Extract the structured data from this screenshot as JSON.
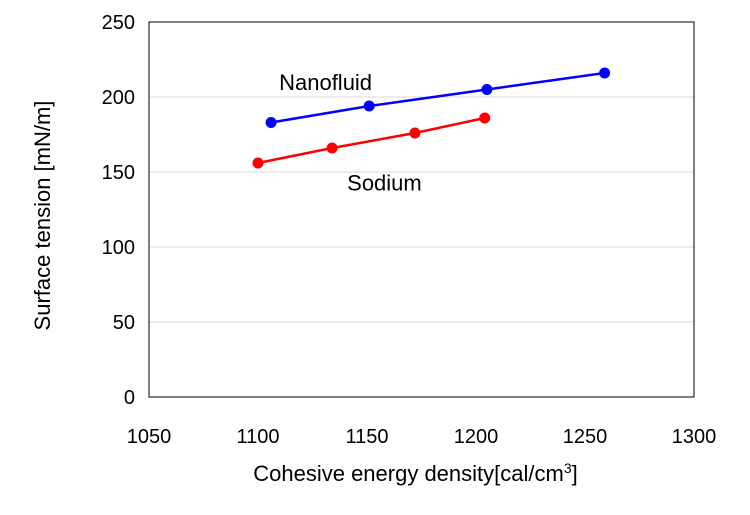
{
  "chart_data": {
    "type": "line",
    "xlabel": "Cohesive energy density[cal/cm",
    "xlabel_sup": "3",
    "xlabel_end": "]",
    "ylabel": "Surface tension [mN/m]",
    "xlim": [
      1050,
      1300
    ],
    "ylim": [
      0,
      250
    ],
    "xticks": [
      "1050",
      "1100",
      "1150",
      "1200",
      "1250",
      "1300"
    ],
    "yticks": [
      "0",
      "50",
      "100",
      "150",
      "200",
      "250"
    ],
    "grid": "horizontal",
    "series": [
      {
        "name": "Nanofluid",
        "color": "#0000ff",
        "x": [
          1106,
          1151,
          1205,
          1259
        ],
        "y": [
          183,
          194,
          205,
          216
        ]
      },
      {
        "name": "Sodium",
        "color": "#ff0000",
        "x": [
          1100,
          1134,
          1172,
          1204
        ],
        "y": [
          156,
          166,
          176,
          186
        ]
      }
    ]
  }
}
